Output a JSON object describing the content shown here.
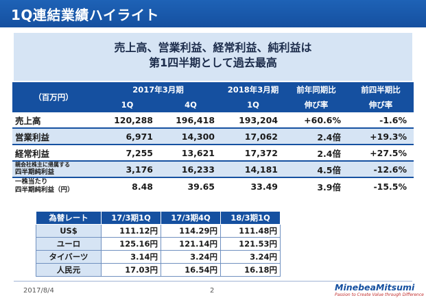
{
  "slide": {
    "title": "1Q連結業績ハイライト",
    "headline_line1": "売上高、営業利益、経常利益、純利益は",
    "headline_line2": "第1四半期として過去最高"
  },
  "main_table": {
    "unit": "（百万円）",
    "fy2017": "2017年3月期",
    "fy2018": "2018年3月期",
    "yoy_label": "前年同期比",
    "yoy_sub": "伸び率",
    "qoq_label": "前四半期比",
    "qoq_sub": "伸び率",
    "col_1q_2017": "1Q",
    "col_4q_2017": "4Q",
    "col_1q_2018": "1Q",
    "rows": [
      {
        "label": "売上高",
        "q1_2017": "120,288",
        "q4_2017": "196,418",
        "q1_2018": "193,204",
        "yoy": "+60.6%",
        "qoq": "-1.6%"
      },
      {
        "label": "営業利益",
        "q1_2017": "6,971",
        "q4_2017": "14,300",
        "q1_2018": "17,062",
        "yoy": "2.4倍",
        "qoq": "+19.3%"
      },
      {
        "label": "経常利益",
        "q1_2017": "7,255",
        "q4_2017": "13,621",
        "q1_2018": "17,372",
        "yoy": "2.4倍",
        "qoq": "+27.5%"
      },
      {
        "label_a": "親会社株主に帰属する",
        "label_b": "四半期純利益",
        "q1_2017": "3,176",
        "q4_2017": "16,233",
        "q1_2018": "14,181",
        "yoy": "4.5倍",
        "qoq": "-12.6%"
      },
      {
        "label_a": "一株当たり",
        "label_b": "四半期純利益（円）",
        "q1_2017": "8.48",
        "q4_2017": "39.65",
        "q1_2018": "33.49",
        "yoy": "3.9倍",
        "qoq": "-15.5%"
      }
    ]
  },
  "rate_table": {
    "header": "為替レート",
    "col1": "17/3期1Q",
    "col2": "17/3期4Q",
    "col3": "18/3期1Q",
    "rows": [
      {
        "currency": "US$",
        "v1": "111.12円",
        "v2": "114.29円",
        "v3": "111.48円"
      },
      {
        "currency": "ユーロ",
        "v1": "125.16円",
        "v2": "121.14円",
        "v3": "121.53円"
      },
      {
        "currency": "タイバーツ",
        "v1": "3.14円",
        "v2": "3.24円",
        "v3": "3.24円"
      },
      {
        "currency": "人民元",
        "v1": "17.03円",
        "v2": "16.54円",
        "v3": "16.18円"
      }
    ]
  },
  "footer": {
    "date": "2017/8/4",
    "page": "2",
    "logo": "MinebeaMitsumi",
    "tagline": "Passion to Create Value through Difference"
  }
}
